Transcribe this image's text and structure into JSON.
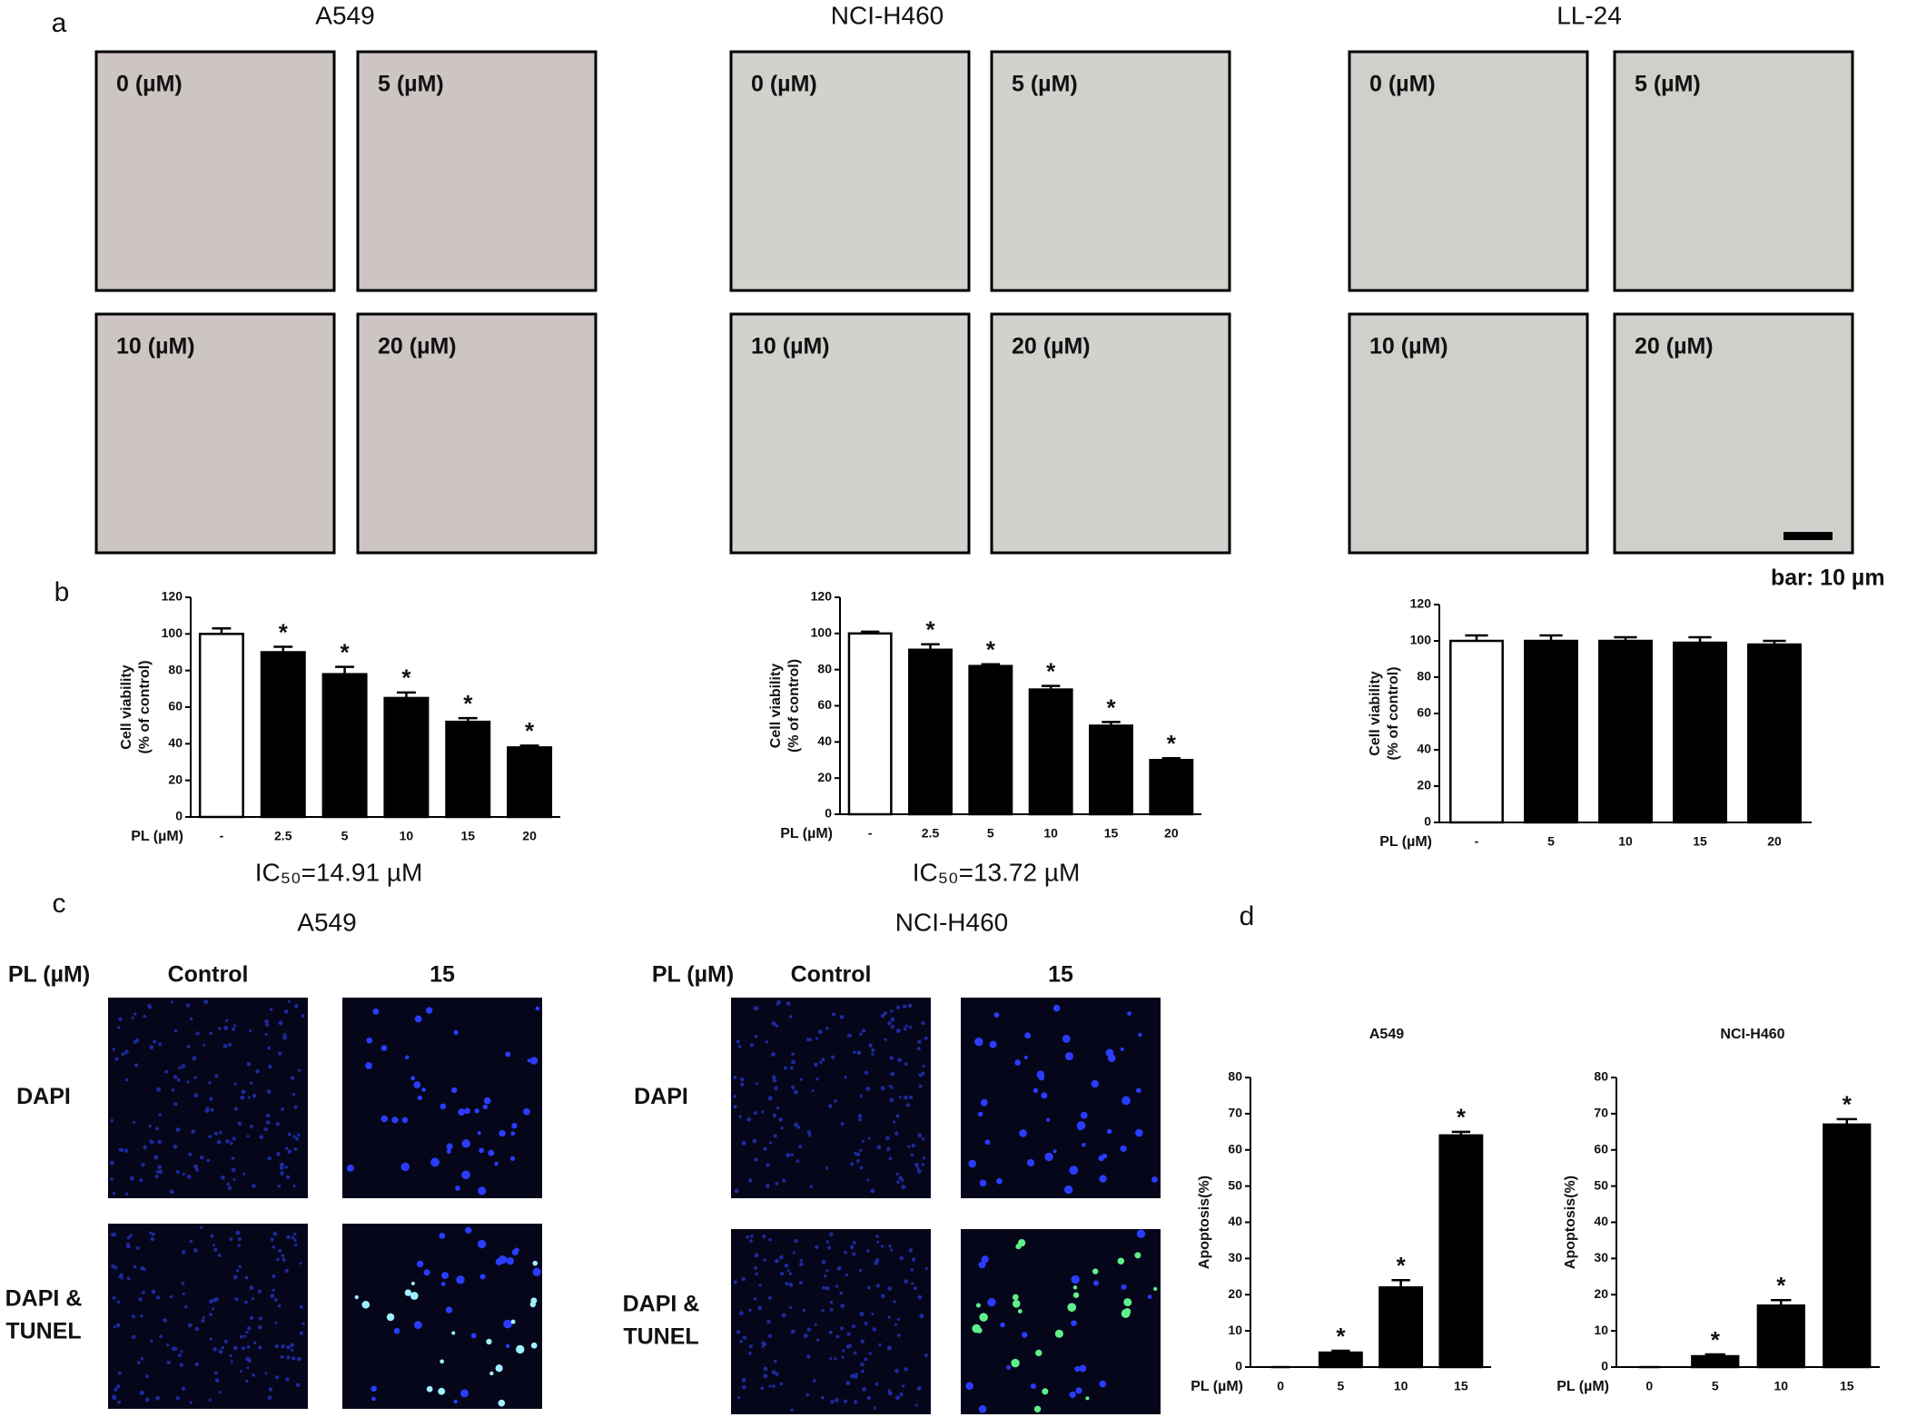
{
  "panel_labels": [
    "a",
    "b",
    "c",
    "d"
  ],
  "micrographs": [
    {
      "cell_line": "A549",
      "doses": [
        "0 (µM)",
        "5 (µM)",
        "10 (µM)",
        "20 (µM)"
      ],
      "color": "#cdc5c3"
    },
    {
      "cell_line": "NCI-H460",
      "doses": [
        "0 (µM)",
        "5 (µM)",
        "10 (µM)",
        "20 (µM)"
      ],
      "color": "#d3d1ce"
    },
    {
      "cell_line": "LL-24",
      "doses": [
        "0 (µM)",
        "5 (µM)",
        "10 (µM)",
        "20 (µM)"
      ],
      "color": "#d0cfcb"
    }
  ],
  "scale_bar": "bar: 10 µm",
  "fluorescence": [
    {
      "cell_line": "A549",
      "dose_header": "PL (µM)",
      "columns": [
        "Control",
        "15"
      ],
      "rows": [
        [
          "DAPI"
        ],
        [
          "DAPI &",
          "TUNEL"
        ]
      ]
    },
    {
      "cell_line": "NCI-H460",
      "dose_header": "PL (µM)",
      "columns": [
        "Control",
        "15"
      ],
      "rows": [
        [
          "DAPI"
        ],
        [
          "DAPI &",
          "TUNEL"
        ]
      ]
    }
  ],
  "chart_data": [
    {
      "type": "bar",
      "ylabel": [
        "Cell viability",
        "(% of control)"
      ],
      "xlabel": "PL (µM)",
      "categories": [
        "-",
        "2.5",
        "5",
        "10",
        "15",
        "20"
      ],
      "values": [
        100,
        90,
        78,
        65,
        52,
        38
      ],
      "errors": [
        3,
        3,
        4,
        3,
        2,
        1
      ],
      "significance": [
        null,
        "*",
        "*",
        "*",
        "*",
        "*"
      ],
      "colors": [
        "#ffffff",
        "#000000",
        "#000000",
        "#000000",
        "#000000",
        "#000000"
      ],
      "ylim": [
        0,
        120
      ],
      "yticks": [
        0,
        20,
        40,
        60,
        80,
        100,
        120
      ],
      "note": "IC₅₀=14.91 µM"
    },
    {
      "type": "bar",
      "ylabel": [
        "Cell viability",
        "(% of control)"
      ],
      "xlabel": "PL (µM)",
      "categories": [
        "-",
        "2.5",
        "5",
        "10",
        "15",
        "20"
      ],
      "values": [
        100,
        91,
        82,
        69,
        49,
        30
      ],
      "errors": [
        1,
        3,
        1,
        2,
        2,
        1
      ],
      "significance": [
        null,
        "*",
        "*",
        "*",
        "*",
        "*"
      ],
      "colors": [
        "#ffffff",
        "#000000",
        "#000000",
        "#000000",
        "#000000",
        "#000000"
      ],
      "ylim": [
        0,
        120
      ],
      "yticks": [
        0,
        20,
        40,
        60,
        80,
        100,
        120
      ],
      "note": "IC₅₀=13.72 µM"
    },
    {
      "type": "bar",
      "ylabel": [
        "Cell viability",
        "(% of control)"
      ],
      "xlabel": "PL (µM)",
      "categories": [
        "-",
        "5",
        "10",
        "15",
        "20"
      ],
      "values": [
        100,
        100,
        100,
        99,
        98
      ],
      "errors": [
        3,
        3,
        2,
        3,
        2
      ],
      "colors": [
        "#ffffff",
        "#000000",
        "#000000",
        "#000000",
        "#000000"
      ],
      "ylim": [
        0,
        120
      ],
      "yticks": [
        0,
        20,
        40,
        60,
        80,
        100,
        120
      ]
    },
    {
      "type": "bar",
      "title": "A549",
      "ylabel": [
        "Apoptosis(%)"
      ],
      "xlabel": "PL (µM)",
      "categories": [
        "0",
        "5",
        "10",
        "15"
      ],
      "values": [
        0,
        4,
        22,
        64
      ],
      "errors": [
        0,
        0.5,
        2,
        1
      ],
      "significance": [
        null,
        "*",
        "*",
        "*"
      ],
      "color": "#000000",
      "ylim": [
        0,
        80
      ],
      "yticks": [
        0,
        10,
        20,
        30,
        40,
        50,
        60,
        70,
        80
      ]
    },
    {
      "type": "bar",
      "title": "NCI-H460",
      "ylabel": [
        "Apoptosis(%)"
      ],
      "xlabel": "PL (µM)",
      "categories": [
        "0",
        "5",
        "10",
        "15"
      ],
      "values": [
        0,
        3,
        17,
        67
      ],
      "errors": [
        0,
        0.5,
        1.5,
        1.5
      ],
      "significance": [
        null,
        "*",
        "*",
        "*"
      ],
      "color": "#000000",
      "ylim": [
        0,
        80
      ],
      "yticks": [
        0,
        10,
        20,
        30,
        40,
        50,
        60,
        70,
        80
      ]
    }
  ]
}
